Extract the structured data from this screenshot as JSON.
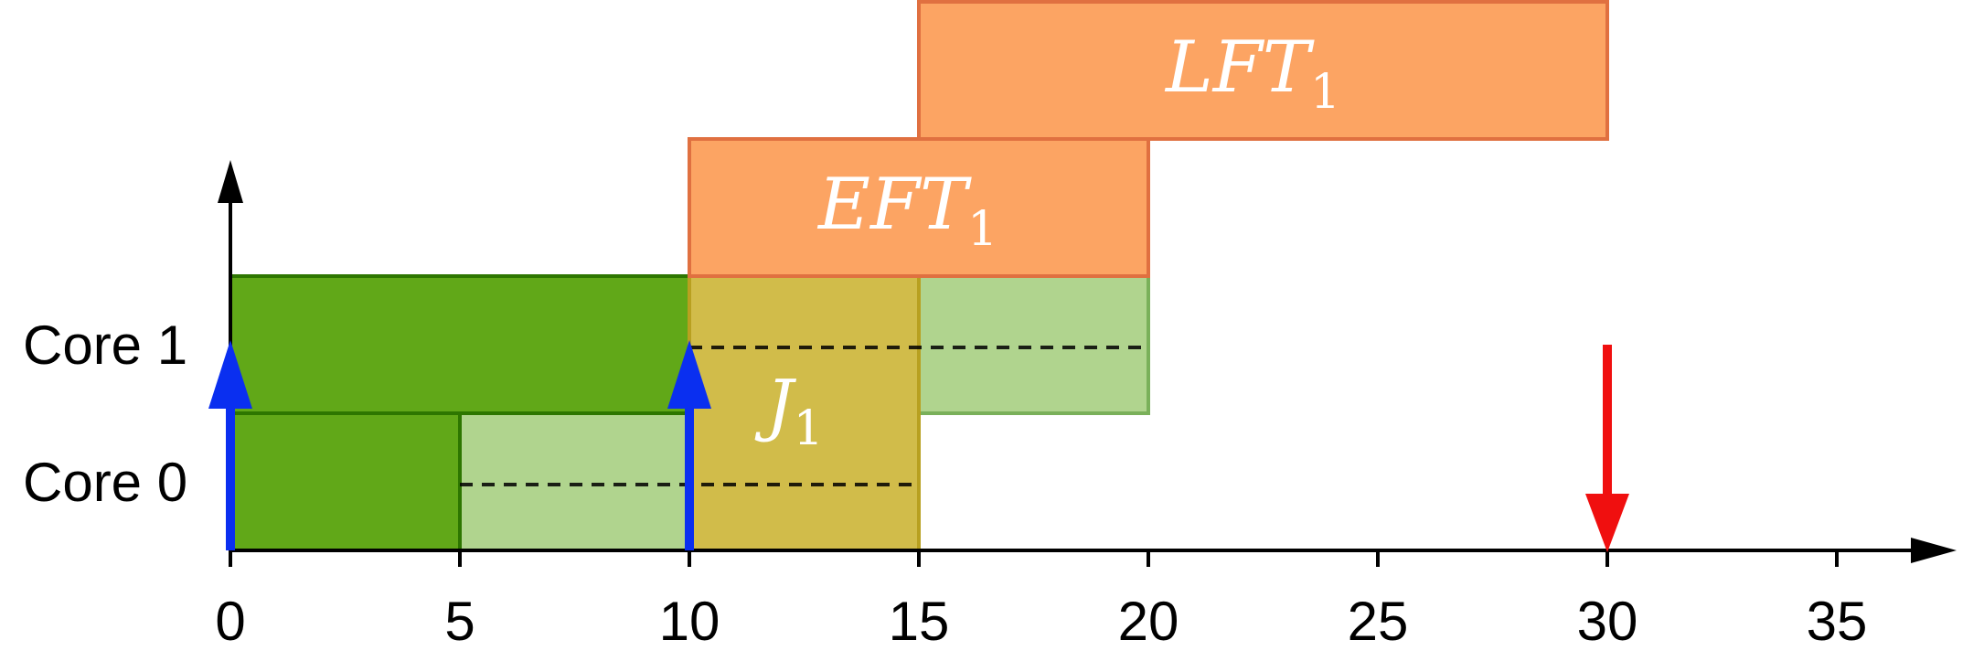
{
  "diagram": {
    "rows": [
      {
        "label": "Core 0"
      },
      {
        "label": "Core 1"
      }
    ],
    "x_ticks": [
      "0",
      "5",
      "10",
      "15",
      "20",
      "25",
      "30",
      "35"
    ],
    "x_range": [
      0,
      37.5
    ],
    "blocks": [
      {
        "name": "core0-exec-dark",
        "row": 0,
        "start": 0,
        "end": 5,
        "fill": "#61a818",
        "stroke": "#2d7600"
      },
      {
        "name": "core0-exec-light",
        "row": 0,
        "start": 5,
        "end": 10,
        "fill": "#b0d48e",
        "stroke": "#2d7600"
      },
      {
        "name": "core1-exec-dark",
        "row": 1,
        "start": 0,
        "end": 10,
        "fill": "#61a818",
        "stroke": "#2d7600"
      },
      {
        "name": "core1-exec-light",
        "row": 1,
        "start": 15,
        "end": 20,
        "fill": "#b0d48e",
        "stroke": "#7ab05a"
      },
      {
        "name": "job-j1-block",
        "row": "both",
        "start": 10,
        "end": 15,
        "fill": "#d1bc4a",
        "stroke": "#b8a020"
      },
      {
        "name": "eft1-bar",
        "row": 2,
        "start": 10,
        "end": 20,
        "fill": "#fca463",
        "stroke": "#e07040"
      },
      {
        "name": "lft1-bar",
        "row": 3,
        "start": 15,
        "end": 30,
        "fill": "#fca463",
        "stroke": "#e07040"
      }
    ],
    "dashed_lines": [
      {
        "row": 0,
        "start": 5,
        "end": 15
      },
      {
        "row": 1,
        "start": 10,
        "end": 20
      }
    ],
    "release_arrows": [
      0,
      10
    ],
    "deadline_arrows": [
      30
    ],
    "labels": {
      "j1": {
        "base": "J",
        "sub": "1"
      },
      "eft1": {
        "base": "EFT",
        "sub": "1"
      },
      "lft1": {
        "base": "LFT",
        "sub": "1"
      }
    },
    "colors": {
      "release_arrow": "#0a2ff0",
      "deadline_arrow": "#f00f0f",
      "axis": "#000000"
    }
  }
}
